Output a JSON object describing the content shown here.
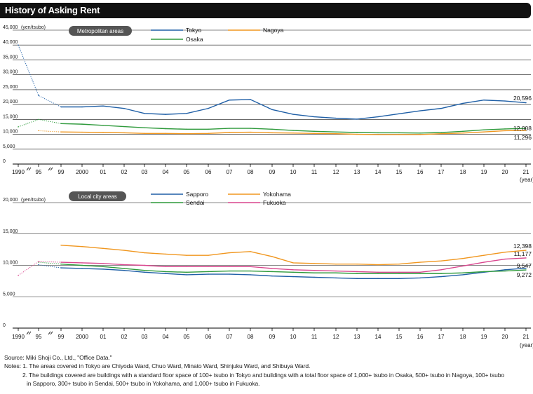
{
  "title": "History of Asking Rent",
  "colors": {
    "Tokyo": "#1f5fa6",
    "Nagoya": "#f0961e",
    "Osaka": "#2f9a3c",
    "Sapporo": "#1f5fa6",
    "Yokohama": "#f0961e",
    "Sendai": "#2f9a3c",
    "Fukuoka": "#d9468e"
  },
  "chart_data": [
    {
      "type": "line",
      "panel_label": "Metropolitan areas",
      "ylabel": "(yen/tsubo)",
      "xlabel": "(year)",
      "ylim": [
        0,
        45000
      ],
      "ytick_labels": [
        "0",
        "5,000",
        "10,000",
        "15,000",
        "20,000",
        "25,000",
        "30,000",
        "35,000",
        "40,000",
        "45,000"
      ],
      "ytick_values": [
        0,
        5000,
        10000,
        15000,
        20000,
        25000,
        30000,
        35000,
        40000,
        45000
      ],
      "x_tick_labels": [
        "1990",
        "95",
        "99",
        "2000",
        "01",
        "02",
        "03",
        "04",
        "05",
        "06",
        "07",
        "08",
        "09",
        "10",
        "11",
        "12",
        "13",
        "14",
        "15",
        "16",
        "17",
        "18",
        "19",
        "20",
        "21"
      ],
      "x_years": [
        1990,
        1995,
        1999,
        2000,
        2001,
        2002,
        2003,
        2004,
        2005,
        2006,
        2007,
        2008,
        2009,
        2010,
        2011,
        2012,
        2013,
        2014,
        2015,
        2016,
        2017,
        2018,
        2019,
        2020,
        2021
      ],
      "series": [
        {
          "name": "Tokyo",
          "values": [
            40000,
            23000,
            19200,
            19200,
            19500,
            18700,
            17000,
            16700,
            17000,
            18700,
            21500,
            21700,
            18300,
            16700,
            15900,
            15400,
            15100,
            15900,
            16900,
            17900,
            18700,
            20400,
            21500,
            21200,
            20596
          ]
        },
        {
          "name": "Nagoya",
          "values": [
            null,
            11200,
            10800,
            10700,
            10600,
            10500,
            10300,
            10300,
            10200,
            10300,
            10600,
            10700,
            10500,
            10400,
            10300,
            10200,
            10000,
            9900,
            9900,
            9900,
            10200,
            10400,
            10800,
            11200,
            11296
          ]
        },
        {
          "name": "Osaka",
          "values": [
            12500,
            15000,
            13600,
            13400,
            13000,
            12600,
            12200,
            11900,
            11700,
            11700,
            12000,
            12000,
            11700,
            11300,
            11000,
            10800,
            10600,
            10500,
            10500,
            10400,
            10600,
            11000,
            11500,
            11800,
            12008
          ]
        }
      ],
      "end_labels": [
        "20,596",
        "12,008",
        "11,296"
      ]
    },
    {
      "type": "line",
      "panel_label": "Local city areas",
      "ylabel": "(yen/tsubo)",
      "xlabel": "(year)",
      "ylim": [
        0,
        20000
      ],
      "ytick_labels": [
        "0",
        "5,000",
        "10,000",
        "15,000",
        "20,000"
      ],
      "ytick_values": [
        0,
        5000,
        10000,
        15000,
        20000
      ],
      "x_tick_labels": [
        "1990",
        "95",
        "99",
        "2000",
        "01",
        "02",
        "03",
        "04",
        "05",
        "06",
        "07",
        "08",
        "09",
        "10",
        "11",
        "12",
        "13",
        "14",
        "15",
        "16",
        "17",
        "18",
        "19",
        "20",
        "21"
      ],
      "x_years": [
        1990,
        1995,
        1999,
        2000,
        2001,
        2002,
        2003,
        2004,
        2005,
        2006,
        2007,
        2008,
        2009,
        2010,
        2011,
        2012,
        2013,
        2014,
        2015,
        2016,
        2017,
        2018,
        2019,
        2020,
        2021
      ],
      "series": [
        {
          "name": "Sapporo",
          "values": [
            null,
            10100,
            9600,
            9500,
            9400,
            9200,
            8900,
            8700,
            8500,
            8600,
            8600,
            8500,
            8300,
            8200,
            8100,
            8000,
            7900,
            7900,
            7900,
            8000,
            8200,
            8500,
            8900,
            9300,
            9547
          ]
        },
        {
          "name": "Yokohama",
          "values": [
            null,
            null,
            13200,
            13000,
            12700,
            12400,
            12000,
            11800,
            11600,
            11600,
            12000,
            12200,
            11400,
            10400,
            10300,
            10200,
            10200,
            10100,
            10200,
            10500,
            10700,
            11100,
            11600,
            12100,
            12398
          ]
        },
        {
          "name": "Sendai",
          "values": [
            null,
            10500,
            10200,
            10000,
            9800,
            9500,
            9200,
            9000,
            8900,
            9000,
            9100,
            9100,
            9000,
            8900,
            8800,
            8800,
            8700,
            8700,
            8700,
            8700,
            8700,
            8800,
            9000,
            9100,
            9272
          ]
        },
        {
          "name": "Fukuoka",
          "values": [
            8400,
            10600,
            10500,
            10400,
            10300,
            10100,
            10000,
            9800,
            9800,
            9800,
            9800,
            9800,
            9500,
            9300,
            9200,
            9100,
            9000,
            8900,
            8900,
            8900,
            9300,
            9900,
            10500,
            11000,
            11177
          ]
        }
      ],
      "end_labels": [
        "12,398",
        "11,177",
        "9,547",
        "9,272"
      ]
    }
  ],
  "footer": {
    "source": "Source: Miki Shoji Co., Ltd., \"Office Data.\"",
    "note1": "Notes: 1. The areas covered in Tokyo are Chiyoda Ward, Chuo Ward, Minato Ward, Shinjuku Ward, and Shibuya Ward.",
    "note2a": "2. The buildings covered are buildings with a standard floor space of 100+ tsubo in Tokyo and buildings with a total floor space of 1,000+ tsubo in Osaka, 500+ tsubo in Nagoya, 100+ tsubo",
    "note2b": "in Sapporo, 300+ tsubo in Sendai, 500+ tsubo in Yokohama, and 1,000+ tsubo in Fukuoka."
  }
}
